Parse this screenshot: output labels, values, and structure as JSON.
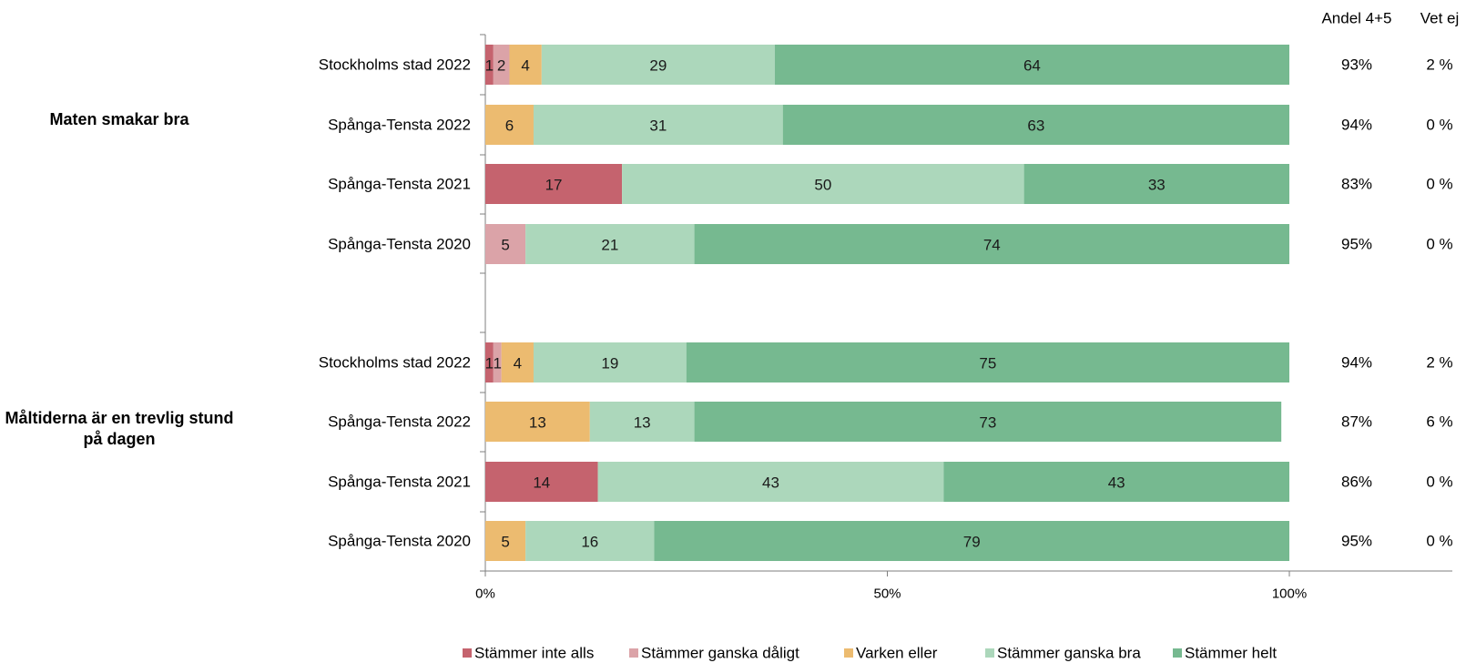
{
  "chart_data": {
    "type": "bar",
    "orientation": "horizontal",
    "stacked": true,
    "percent_scale": true,
    "column_headers": {
      "share": "Andel 4+5",
      "dont_know": "Vet ej"
    },
    "x_ticks": [
      "0%",
      "50%",
      "100%"
    ],
    "xlim": [
      0,
      100
    ],
    "legend_position": "bottom",
    "series": [
      {
        "name": "Stämmer inte alls",
        "color": "#c5636e"
      },
      {
        "name": "Stämmer ganska dåligt",
        "color": "#dba3a8"
      },
      {
        "name": "Varken eller",
        "color": "#ecbb70"
      },
      {
        "name": "Stämmer ganska bra",
        "color": "#acd7bb"
      },
      {
        "name": "Stämmer helt",
        "color": "#76b990"
      }
    ],
    "groups": [
      {
        "title": "Maten smakar bra",
        "rows": [
          {
            "label": "Stockholms stad 2022",
            "values": [
              1,
              2,
              4,
              29,
              64
            ],
            "share": "93%",
            "dont_know": "2 %"
          },
          {
            "label": "Spånga-Tensta 2022",
            "values": [
              0,
              0,
              6,
              31,
              63
            ],
            "share": "94%",
            "dont_know": "0 %"
          },
          {
            "label": "Spånga-Tensta 2021",
            "values": [
              17,
              0,
              0,
              50,
              33
            ],
            "share": "83%",
            "dont_know": "0 %"
          },
          {
            "label": "Spånga-Tensta 2020",
            "values": [
              0,
              5,
              0,
              21,
              74
            ],
            "share": "95%",
            "dont_know": "0 %"
          }
        ]
      },
      {
        "title": "Måltiderna är en trevlig stund på dagen",
        "rows": [
          {
            "label": "Stockholms stad 2022",
            "values": [
              1,
              1,
              4,
              19,
              75
            ],
            "share": "94%",
            "dont_know": "2 %"
          },
          {
            "label": "Spånga-Tensta 2022",
            "values": [
              0,
              0,
              13,
              13,
              73
            ],
            "share": "87%",
            "dont_know": "6 %"
          },
          {
            "label": "Spånga-Tensta 2021",
            "values": [
              14,
              0,
              0,
              43,
              43
            ],
            "share": "86%",
            "dont_know": "0 %"
          },
          {
            "label": "Spånga-Tensta 2020",
            "values": [
              0,
              0,
              5,
              16,
              79
            ],
            "share": "95%",
            "dont_know": "0 %"
          }
        ]
      }
    ]
  }
}
